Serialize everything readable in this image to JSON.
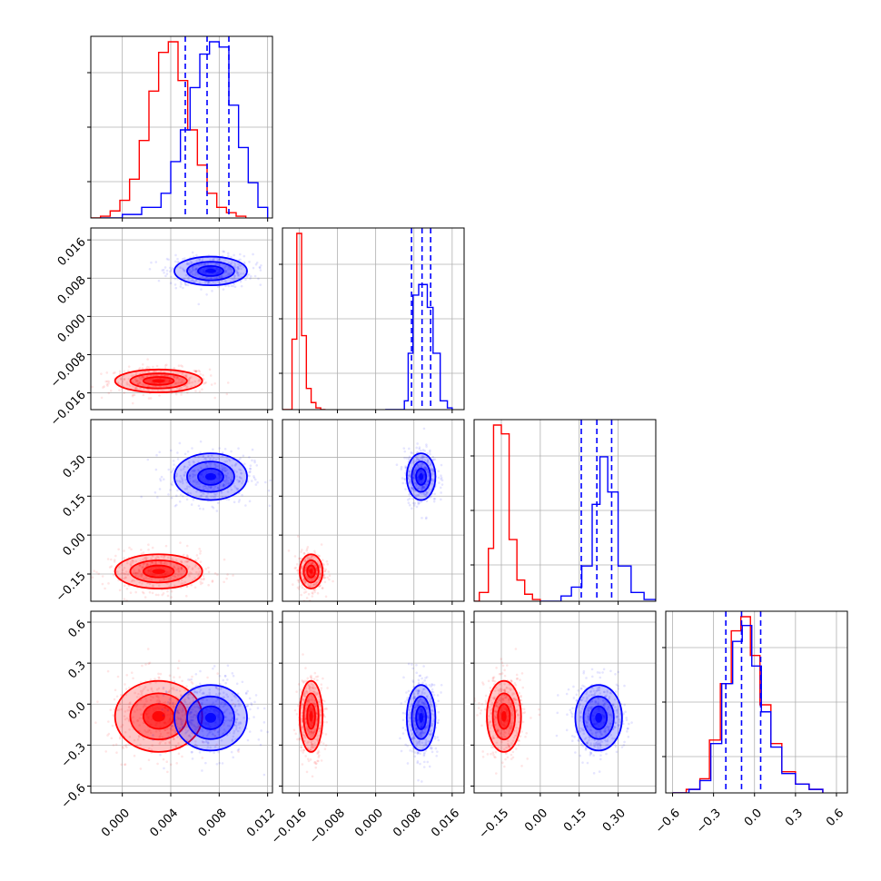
{
  "chart_data": {
    "type": "corner",
    "grid": true,
    "colors": {
      "red": "#ff0000",
      "blue": "#0000ff",
      "grid": "#b0b0b0",
      "axis": "#000000"
    },
    "params": [
      {
        "range": [
          -0.0026,
          0.0124
        ],
        "ticks": [
          "0.000",
          "0.004",
          "0.008",
          "0.012"
        ],
        "tick_values": [
          0.0,
          0.004,
          0.008,
          0.012
        ]
      },
      {
        "range": [
          -0.0195,
          0.0185
        ],
        "ticks": [
          "−0.016",
          "−0.008",
          "0.000",
          "0.008",
          "0.016"
        ],
        "tick_values": [
          -0.016,
          -0.008,
          0.0,
          0.008,
          0.016
        ]
      },
      {
        "range": [
          -0.255,
          0.445
        ],
        "ticks": [
          "−0.15",
          "0.00",
          "0.15",
          "0.30"
        ],
        "tick_values": [
          -0.15,
          0.0,
          0.15,
          0.3
        ]
      },
      {
        "range": [
          -0.65,
          0.68
        ],
        "ticks": [
          "−0.6",
          "−0.3",
          "0.0",
          "0.3",
          "0.6"
        ],
        "tick_values": [
          -0.6,
          -0.3,
          0.0,
          0.3,
          0.6
        ]
      }
    ],
    "series": [
      {
        "color": "red",
        "mean": [
          0.003,
          -0.0135,
          -0.14,
          -0.09
        ],
        "sd": [
          0.0018,
          0.0012,
          0.033,
          0.13
        ],
        "hist1d": [
          [
            [
              -0.0026,
              0.0
            ],
            [
              -0.0018,
              0.01
            ],
            [
              -0.001,
              0.04
            ],
            [
              -0.0002,
              0.1
            ],
            [
              0.0006,
              0.22
            ],
            [
              0.0014,
              0.44
            ],
            [
              0.0022,
              0.72
            ],
            [
              0.003,
              0.94
            ],
            [
              0.0038,
              1.0
            ],
            [
              0.0046,
              0.78
            ],
            [
              0.0054,
              0.5
            ],
            [
              0.0062,
              0.3
            ],
            [
              0.007,
              0.14
            ],
            [
              0.0078,
              0.06
            ],
            [
              0.0086,
              0.03
            ],
            [
              0.0094,
              0.01
            ],
            [
              0.0102,
              0.0
            ]
          ],
          [
            [
              -0.0195,
              0.0
            ],
            [
              -0.0175,
              0.4
            ],
            [
              -0.0165,
              1.0
            ],
            [
              -0.0155,
              0.42
            ],
            [
              -0.0145,
              0.12
            ],
            [
              -0.0135,
              0.04
            ],
            [
              -0.0125,
              0.01
            ],
            [
              -0.0115,
              0.0
            ],
            [
              -0.0105,
              0.0
            ]
          ],
          [
            [
              -0.255,
              0.0
            ],
            [
              -0.235,
              0.05
            ],
            [
              -0.2,
              0.3
            ],
            [
              -0.18,
              1.0
            ],
            [
              -0.15,
              0.95
            ],
            [
              -0.12,
              0.35
            ],
            [
              -0.09,
              0.12
            ],
            [
              -0.06,
              0.04
            ],
            [
              -0.03,
              0.01
            ],
            [
              0.0,
              0.0
            ]
          ],
          [
            [
              -0.6,
              0.0
            ],
            [
              -0.5,
              0.02
            ],
            [
              -0.4,
              0.08
            ],
            [
              -0.33,
              0.3
            ],
            [
              -0.25,
              0.62
            ],
            [
              -0.17,
              0.92
            ],
            [
              -0.1,
              1.0
            ],
            [
              -0.03,
              0.78
            ],
            [
              0.04,
              0.5
            ],
            [
              0.12,
              0.28
            ],
            [
              0.2,
              0.12
            ],
            [
              0.3,
              0.05
            ],
            [
              0.4,
              0.02
            ],
            [
              0.5,
              0.0
            ]
          ]
        ]
      },
      {
        "color": "blue",
        "mean": [
          0.0073,
          0.0095,
          0.225,
          -0.1
        ],
        "sd": [
          0.0015,
          0.0015,
          0.045,
          0.12
        ],
        "quantiles": [
          [
            0.0052,
            0.007,
            0.0088
          ],
          [
            0.0075,
            0.0097,
            0.0115
          ],
          [
            0.158,
            0.218,
            0.275
          ],
          [
            -0.21,
            -0.095,
            0.045
          ]
        ],
        "hist1d": [
          [
            [
              -0.0018,
              0.0
            ],
            [
              0.0,
              0.02
            ],
            [
              0.0016,
              0.06
            ],
            [
              0.0032,
              0.14
            ],
            [
              0.004,
              0.32
            ],
            [
              0.0048,
              0.5
            ],
            [
              0.0056,
              0.74
            ],
            [
              0.0064,
              0.93
            ],
            [
              0.0072,
              1.0
            ],
            [
              0.008,
              0.97
            ],
            [
              0.0088,
              0.64
            ],
            [
              0.0096,
              0.4
            ],
            [
              0.0104,
              0.2
            ],
            [
              0.0112,
              0.06
            ],
            [
              0.012,
              0.0
            ]
          ],
          [
            [
              0.002,
              0.0
            ],
            [
              0.006,
              0.05
            ],
            [
              0.0068,
              0.32
            ],
            [
              0.0078,
              0.65
            ],
            [
              0.009,
              0.71
            ],
            [
              0.0108,
              0.58
            ],
            [
              0.012,
              0.32
            ],
            [
              0.0135,
              0.05
            ],
            [
              0.015,
              0.01
            ],
            [
              0.016,
              0.0
            ]
          ],
          [
            [
              0.0,
              0.0
            ],
            [
              0.08,
              0.03
            ],
            [
              0.12,
              0.08
            ],
            [
              0.16,
              0.2
            ],
            [
              0.2,
              0.55
            ],
            [
              0.23,
              0.82
            ],
            [
              0.26,
              0.62
            ],
            [
              0.3,
              0.2
            ],
            [
              0.35,
              0.05
            ],
            [
              0.4,
              0.01
            ],
            [
              0.445,
              0.0
            ]
          ],
          [
            [
              -0.6,
              0.0
            ],
            [
              -0.48,
              0.02
            ],
            [
              -0.4,
              0.07
            ],
            [
              -0.32,
              0.28
            ],
            [
              -0.24,
              0.62
            ],
            [
              -0.16,
              0.86
            ],
            [
              -0.09,
              0.95
            ],
            [
              -0.02,
              0.72
            ],
            [
              0.05,
              0.46
            ],
            [
              0.12,
              0.26
            ],
            [
              0.2,
              0.11
            ],
            [
              0.3,
              0.05
            ],
            [
              0.4,
              0.02
            ],
            [
              0.5,
              0.0
            ]
          ]
        ]
      }
    ]
  }
}
